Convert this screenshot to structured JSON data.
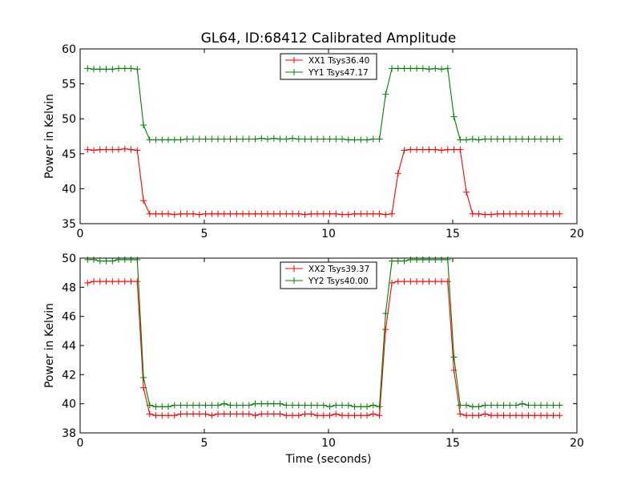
{
  "chart_data": [
    {
      "type": "line",
      "title": "GL64, ID:68412 Calibrated Amplitude",
      "xlabel": "",
      "ylabel": "Power in Kelvin",
      "xlim": [
        0,
        20
      ],
      "ylim": [
        35,
        60
      ],
      "xticks": [
        0,
        5,
        10,
        15,
        20
      ],
      "yticks": [
        35,
        40,
        45,
        50,
        55,
        60
      ],
      "grid": false,
      "legend_position": "top-center",
      "x": [
        0.3,
        0.55,
        0.8,
        1.05,
        1.3,
        1.55,
        1.8,
        2.05,
        2.3,
        2.55,
        2.8,
        3.05,
        3.3,
        3.55,
        3.8,
        4.05,
        4.3,
        4.55,
        4.8,
        5.05,
        5.3,
        5.55,
        5.8,
        6.05,
        6.3,
        6.55,
        6.8,
        7.05,
        7.3,
        7.55,
        7.8,
        8.05,
        8.3,
        8.55,
        8.8,
        9.05,
        9.3,
        9.55,
        9.8,
        10.05,
        10.3,
        10.55,
        10.8,
        11.05,
        11.3,
        11.55,
        11.8,
        12.05,
        12.3,
        12.55,
        12.8,
        13.05,
        13.3,
        13.55,
        13.8,
        14.05,
        14.3,
        14.55,
        14.8,
        15.05,
        15.3,
        15.55,
        15.8,
        16.05,
        16.3,
        16.55,
        16.8,
        17.05,
        17.3,
        17.55,
        17.8,
        18.05,
        18.3,
        18.55,
        18.8,
        19.05,
        19.3
      ],
      "series": [
        {
          "name": "XX1 Tsys36.40",
          "color": "#ff0000",
          "values": [
            45.6,
            45.5,
            45.6,
            45.6,
            45.6,
            45.6,
            45.7,
            45.6,
            45.5,
            38.3,
            36.4,
            36.4,
            36.4,
            36.4,
            36.3,
            36.4,
            36.4,
            36.4,
            36.3,
            36.4,
            36.4,
            36.4,
            36.4,
            36.4,
            36.4,
            36.4,
            36.4,
            36.4,
            36.4,
            36.4,
            36.4,
            36.4,
            36.4,
            36.4,
            36.4,
            36.3,
            36.4,
            36.4,
            36.4,
            36.4,
            36.4,
            36.3,
            36.3,
            36.4,
            36.4,
            36.4,
            36.4,
            36.4,
            36.3,
            36.4,
            42.2,
            45.5,
            45.6,
            45.6,
            45.6,
            45.6,
            45.6,
            45.5,
            45.6,
            45.6,
            45.6,
            39.5,
            36.4,
            36.4,
            36.3,
            36.3,
            36.4,
            36.4,
            36.4,
            36.4,
            36.4,
            36.4,
            36.4,
            36.4,
            36.4,
            36.4,
            36.4
          ]
        },
        {
          "name": "YY1 Tsys47.17",
          "color": "#008000",
          "values": [
            57.2,
            57.1,
            57.1,
            57.1,
            57.1,
            57.2,
            57.2,
            57.2,
            57.1,
            49.1,
            47.0,
            47.0,
            47.0,
            47.0,
            47.0,
            47.0,
            47.1,
            47.1,
            47.1,
            47.1,
            47.1,
            47.1,
            47.1,
            47.1,
            47.1,
            47.1,
            47.1,
            47.1,
            47.2,
            47.1,
            47.2,
            47.1,
            47.1,
            47.2,
            47.1,
            47.1,
            47.1,
            47.1,
            47.1,
            47.1,
            47.1,
            47.1,
            47.0,
            47.0,
            47.0,
            47.0,
            47.1,
            47.1,
            53.5,
            57.2,
            57.2,
            57.2,
            57.2,
            57.2,
            57.2,
            57.1,
            57.2,
            57.1,
            57.2,
            50.3,
            47.0,
            47.0,
            47.1,
            47.0,
            47.1,
            47.1,
            47.1,
            47.1,
            47.1,
            47.1,
            47.1,
            47.1,
            47.1,
            47.1,
            47.1,
            47.1,
            47.1
          ]
        }
      ]
    },
    {
      "type": "line",
      "title": "",
      "xlabel": "Time (seconds)",
      "ylabel": "Power in Kelvin",
      "xlim": [
        0,
        20
      ],
      "ylim": [
        38,
        50
      ],
      "xticks": [
        0,
        5,
        10,
        15,
        20
      ],
      "yticks": [
        38,
        40,
        42,
        44,
        46,
        48,
        50
      ],
      "grid": false,
      "legend_position": "top-center",
      "x": [
        0.3,
        0.55,
        0.8,
        1.05,
        1.3,
        1.55,
        1.8,
        2.05,
        2.3,
        2.55,
        2.8,
        3.05,
        3.3,
        3.55,
        3.8,
        4.05,
        4.3,
        4.55,
        4.8,
        5.05,
        5.3,
        5.55,
        5.8,
        6.05,
        6.3,
        6.55,
        6.8,
        7.05,
        7.3,
        7.55,
        7.8,
        8.05,
        8.3,
        8.55,
        8.8,
        9.05,
        9.3,
        9.55,
        9.8,
        10.05,
        10.3,
        10.55,
        10.8,
        11.05,
        11.3,
        11.55,
        11.8,
        12.05,
        12.3,
        12.55,
        12.8,
        13.05,
        13.3,
        13.55,
        13.8,
        14.05,
        14.3,
        14.55,
        14.8,
        15.05,
        15.3,
        15.55,
        15.8,
        16.05,
        16.3,
        16.55,
        16.8,
        17.05,
        17.3,
        17.55,
        17.8,
        18.05,
        18.3,
        18.55,
        18.8,
        19.05,
        19.3
      ],
      "series": [
        {
          "name": "XX2 Tsys39.37",
          "color": "#ff0000",
          "values": [
            48.3,
            48.4,
            48.4,
            48.4,
            48.4,
            48.4,
            48.4,
            48.4,
            48.4,
            41.1,
            39.3,
            39.2,
            39.2,
            39.2,
            39.2,
            39.3,
            39.3,
            39.3,
            39.3,
            39.3,
            39.2,
            39.3,
            39.3,
            39.3,
            39.3,
            39.3,
            39.3,
            39.2,
            39.3,
            39.3,
            39.3,
            39.3,
            39.2,
            39.2,
            39.2,
            39.3,
            39.3,
            39.2,
            39.2,
            39.2,
            39.3,
            39.2,
            39.2,
            39.2,
            39.2,
            39.2,
            39.3,
            39.2,
            45.1,
            48.3,
            48.4,
            48.4,
            48.4,
            48.4,
            48.4,
            48.4,
            48.4,
            48.4,
            48.4,
            42.3,
            39.3,
            39.2,
            39.2,
            39.2,
            39.3,
            39.2,
            39.2,
            39.2,
            39.2,
            39.2,
            39.2,
            39.2,
            39.2,
            39.2,
            39.2,
            39.2,
            39.2
          ]
        },
        {
          "name": "YY2 Tsys40.00",
          "color": "#008000",
          "values": [
            49.9,
            49.9,
            49.8,
            49.8,
            49.8,
            49.9,
            49.9,
            49.9,
            49.9,
            41.8,
            39.9,
            39.8,
            39.8,
            39.8,
            39.9,
            39.9,
            39.9,
            39.9,
            39.9,
            39.9,
            39.9,
            39.9,
            40.0,
            39.9,
            39.9,
            39.9,
            39.9,
            40.0,
            40.0,
            40.0,
            40.0,
            40.0,
            39.9,
            39.9,
            39.9,
            39.9,
            39.9,
            39.9,
            39.9,
            39.8,
            39.9,
            39.9,
            39.9,
            39.8,
            39.8,
            39.8,
            39.9,
            39.8,
            46.2,
            49.8,
            49.8,
            49.8,
            49.9,
            49.9,
            49.9,
            49.9,
            49.9,
            49.9,
            49.9,
            43.2,
            39.9,
            39.9,
            39.8,
            39.8,
            39.9,
            39.9,
            39.9,
            39.9,
            39.9,
            39.9,
            40.0,
            39.9,
            39.9,
            39.9,
            39.9,
            39.9,
            39.9
          ]
        }
      ]
    }
  ]
}
